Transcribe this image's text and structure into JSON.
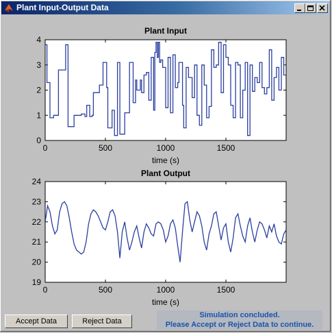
{
  "window": {
    "title": "Plant Input-Output Data",
    "controls": [
      "minimize-icon",
      "maximize-icon",
      "close-icon"
    ]
  },
  "chart_data": [
    {
      "type": "line",
      "title": "Plant Input",
      "xlabel": "time (s)",
      "ylabel": "",
      "xlim": [
        0,
        2000
      ],
      "ylim": [
        0,
        4
      ],
      "xticks": [
        0,
        500,
        1000,
        1500
      ],
      "yticks": [
        0,
        1,
        2,
        3,
        4
      ],
      "grid": false,
      "color": "#2a3f9f",
      "step": true,
      "series": [
        {
          "x": [
            0,
            15,
            40,
            70,
            110,
            170,
            190,
            240,
            300,
            330,
            345,
            370,
            390,
            400,
            450,
            480,
            510,
            520,
            555,
            575,
            600,
            620,
            660,
            700,
            730,
            750,
            760,
            790,
            800,
            820,
            840,
            860,
            880,
            900,
            910,
            920,
            930,
            940,
            950,
            960,
            975,
            1000,
            1020,
            1040,
            1060,
            1080,
            1100,
            1110,
            1140,
            1150,
            1170,
            1190,
            1220,
            1240,
            1260,
            1280,
            1300,
            1320,
            1340,
            1360,
            1380,
            1400,
            1420,
            1440,
            1460,
            1480,
            1500,
            1520,
            1540,
            1560,
            1580,
            1600,
            1620,
            1640,
            1660,
            1680,
            1700,
            1720,
            1740,
            1760,
            1780,
            1800,
            1820,
            1840,
            1860,
            1880,
            1900,
            1920,
            1940,
            1960,
            1980,
            2000
          ],
          "y": [
            3.8,
            2.3,
            0.9,
            1.0,
            2.8,
            3.8,
            0.55,
            1.0,
            1.05,
            0.95,
            1.4,
            0.95,
            1.0,
            1.9,
            2.2,
            3.1,
            2.1,
            0.5,
            1.2,
            0.2,
            3.1,
            0.25,
            1.1,
            3.1,
            1.5,
            2.4,
            2.0,
            2.4,
            1.9,
            2.6,
            2.7,
            1.6,
            3.3,
            1.2,
            3.5,
            3.9,
            3.3,
            3.9,
            3.1,
            3.2,
            2.9,
            1.3,
            3.3,
            1.1,
            3.4,
            2.1,
            2.3,
            3.1,
            1.4,
            0.5,
            2.9,
            2.5,
            1.7,
            3.0,
            1.0,
            0.6,
            3.0,
            2.2,
            0.9,
            1.35,
            3.6,
            2.9,
            3.0,
            3.9,
            1.9,
            3.8,
            3.3,
            3.0,
            1.4,
            0.9,
            3.1,
            3.0,
            0.9,
            2.0,
            3.1,
            0.2,
            3.0,
            1.95,
            2.5,
            2.3,
            3.1,
            2.1,
            1.85,
            2.1,
            3.6,
            1.6,
            2.5,
            2.9,
            2.0,
            3.3,
            2.6,
            2.6
          ]
        }
      ]
    },
    {
      "type": "line",
      "title": "Plant Output",
      "xlabel": "time (s)",
      "ylabel": "",
      "xlim": [
        0,
        2000
      ],
      "ylim": [
        19,
        24
      ],
      "xticks": [
        0,
        500,
        1000,
        1500
      ],
      "yticks": [
        19,
        20,
        21,
        22,
        23,
        24
      ],
      "grid": false,
      "color": "#2a3f9f",
      "step": false,
      "series": [
        {
          "x": [
            0,
            20,
            40,
            60,
            80,
            100,
            120,
            140,
            160,
            180,
            200,
            220,
            240,
            260,
            280,
            300,
            320,
            340,
            360,
            380,
            400,
            420,
            440,
            460,
            480,
            500,
            520,
            540,
            560,
            580,
            600,
            620,
            640,
            660,
            680,
            700,
            720,
            740,
            760,
            780,
            800,
            820,
            840,
            860,
            880,
            900,
            920,
            940,
            960,
            980,
            1000,
            1020,
            1040,
            1060,
            1080,
            1100,
            1120,
            1140,
            1160,
            1180,
            1200,
            1220,
            1240,
            1260,
            1280,
            1300,
            1320,
            1340,
            1360,
            1380,
            1400,
            1420,
            1440,
            1460,
            1480,
            1500,
            1520,
            1540,
            1560,
            1580,
            1600,
            1620,
            1640,
            1660,
            1680,
            1700,
            1720,
            1740,
            1760,
            1780,
            1800,
            1820,
            1840,
            1860,
            1880,
            1900,
            1920,
            1940,
            1960,
            1980,
            2000
          ],
          "y": [
            22.0,
            22.8,
            22.5,
            21.8,
            21.4,
            21.6,
            22.5,
            22.9,
            23.0,
            22.8,
            22.2,
            21.5,
            20.9,
            20.6,
            20.5,
            20.4,
            20.5,
            21.0,
            21.9,
            22.4,
            22.6,
            22.5,
            22.3,
            22.0,
            21.7,
            21.6,
            22.0,
            22.5,
            22.6,
            22.3,
            21.5,
            20.2,
            21.5,
            22.0,
            21.2,
            20.6,
            21.0,
            21.5,
            21.8,
            21.2,
            20.7,
            21.5,
            21.9,
            21.7,
            21.4,
            21.3,
            21.9,
            22.0,
            21.9,
            21.6,
            21.0,
            21.3,
            21.9,
            22.1,
            21.7,
            20.8,
            20.0,
            21.5,
            22.9,
            23.0,
            22.1,
            21.5,
            22.0,
            22.5,
            22.3,
            21.8,
            21.0,
            20.6,
            21.4,
            21.8,
            22.4,
            22.5,
            21.8,
            21.1,
            21.7,
            21.9,
            21.0,
            20.5,
            21.2,
            22.2,
            22.4,
            21.8,
            21.3,
            21.0,
            21.8,
            22.2,
            21.5,
            21.0,
            21.6,
            22.0,
            21.9,
            21.6,
            21.2,
            21.8,
            21.5,
            21.9,
            21.3,
            21.0,
            20.9,
            21.4,
            21.6
          ]
        }
      ]
    }
  ],
  "buttons": {
    "accept_label": "Accept Data",
    "reject_label": "Reject Data"
  },
  "status": {
    "line1": "Simulation concluded.",
    "line2": "Please Accept or Reject Data to continue."
  }
}
